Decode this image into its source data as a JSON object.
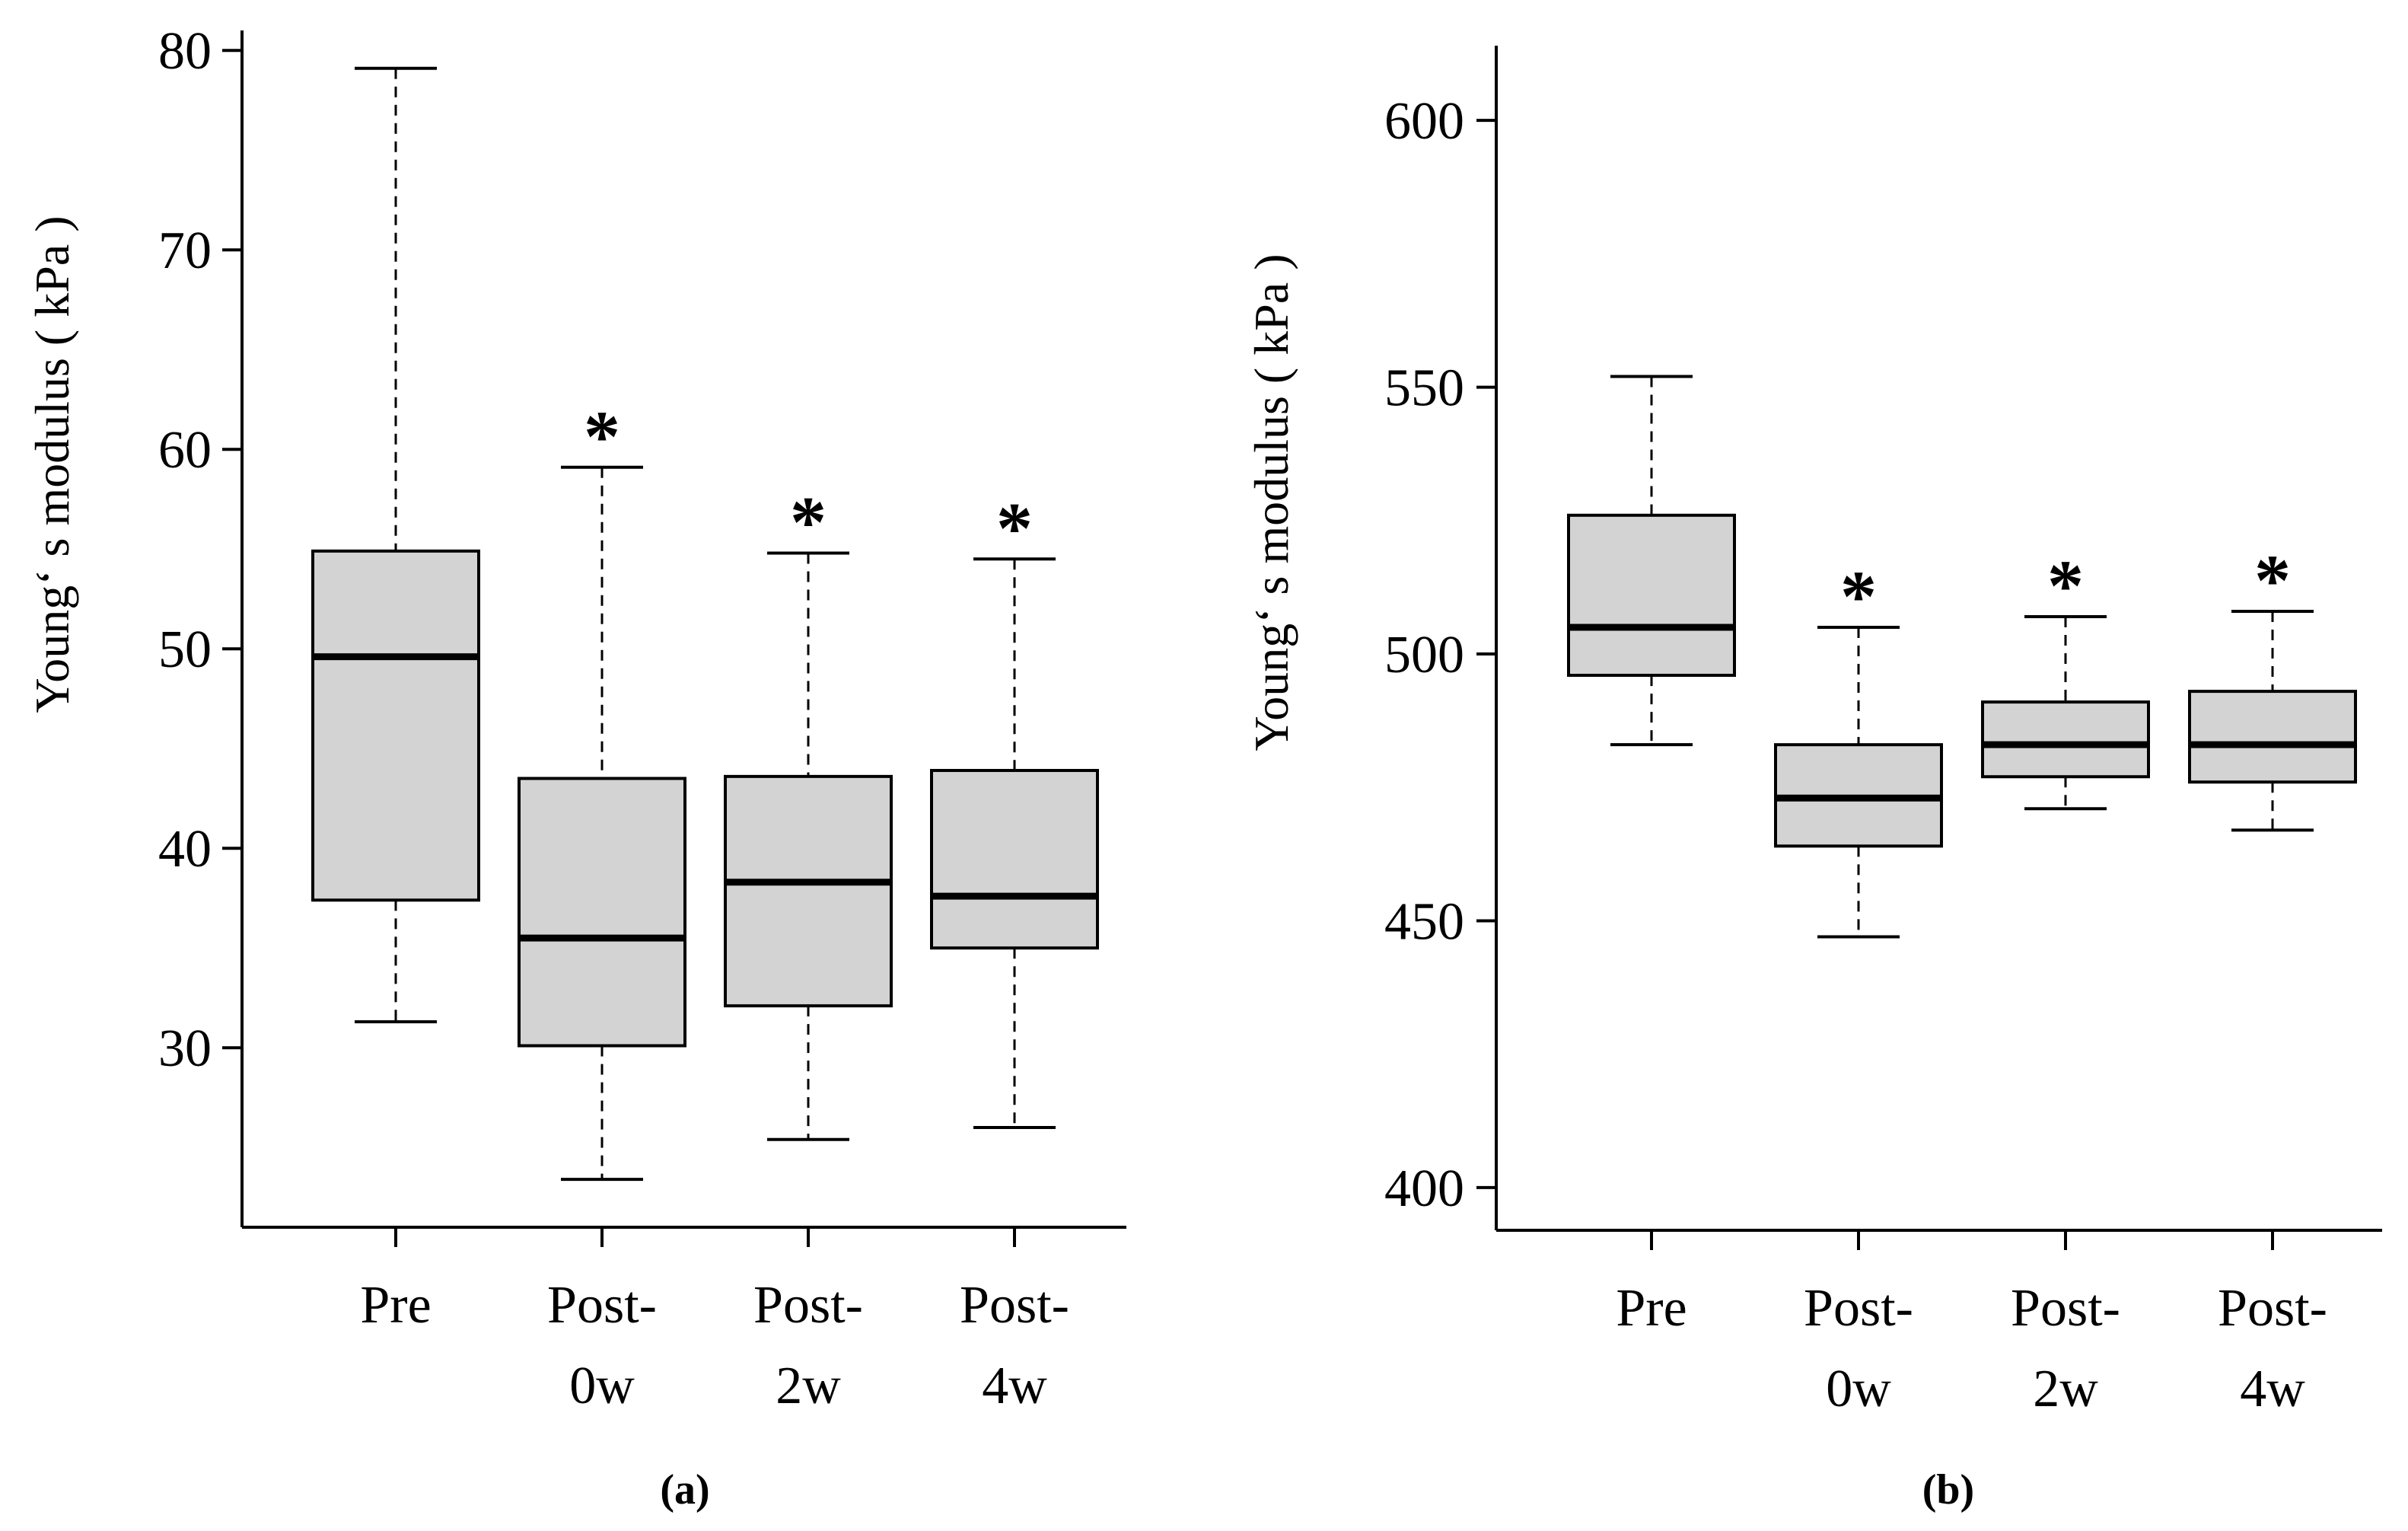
{
  "chart_data": [
    {
      "type": "box",
      "panel_label": "(a)",
      "ylabel": "Young‘ s modulus ( kPa )",
      "ylim": [
        21,
        81
      ],
      "yticks": [
        30,
        40,
        50,
        60,
        70,
        80
      ],
      "yticklabels": [
        "30",
        "40",
        "50",
        "60",
        "70",
        "80"
      ],
      "categories": [
        "Pre",
        "Post-0w",
        "Post-2w",
        "Post-4w"
      ],
      "category_lines": [
        [
          "Pre"
        ],
        [
          "Post-",
          "0w"
        ],
        [
          "Post-",
          "2w"
        ],
        [
          "Post-",
          "4w"
        ]
      ],
      "boxes": [
        {
          "min": 31.3,
          "q1": 37.4,
          "median": 49.6,
          "q3": 54.9,
          "max": 79.1,
          "marker": ""
        },
        {
          "min": 23.4,
          "q1": 30.1,
          "median": 35.5,
          "q3": 43.5,
          "max": 59.1,
          "marker": "*"
        },
        {
          "min": 25.4,
          "q1": 32.1,
          "median": 38.3,
          "q3": 43.6,
          "max": 54.8,
          "marker": "*"
        },
        {
          "min": 26.0,
          "q1": 35.0,
          "median": 37.6,
          "q3": 43.9,
          "max": 54.5,
          "marker": "*"
        }
      ],
      "box_color": "#d3d3d3"
    },
    {
      "type": "box",
      "panel_label": "(b)",
      "ylabel": "Young‘ s modulus ( kPa )",
      "ylim": [
        392,
        614
      ],
      "yticks": [
        400,
        450,
        500,
        550,
        600
      ],
      "yticklabels": [
        "400",
        "450",
        "500",
        "550",
        "600"
      ],
      "categories": [
        "Pre",
        "Post-0w",
        "Post-2w",
        "Post-4w"
      ],
      "category_lines": [
        [
          "Pre"
        ],
        [
          "Post-",
          "0w"
        ],
        [
          "Post-",
          "2w"
        ],
        [
          "Post-",
          "4w"
        ]
      ],
      "boxes": [
        {
          "min": 483,
          "q1": 496,
          "median": 505,
          "q3": 526,
          "max": 552,
          "marker": ""
        },
        {
          "min": 447,
          "q1": 464,
          "median": 473,
          "q3": 483,
          "max": 505,
          "marker": "*"
        },
        {
          "min": 471,
          "q1": 477,
          "median": 483,
          "q3": 491,
          "max": 507,
          "marker": "*"
        },
        {
          "min": 467,
          "q1": 476,
          "median": 483,
          "q3": 493,
          "max": 508,
          "marker": "*"
        }
      ],
      "box_color": "#d3d3d3"
    }
  ]
}
